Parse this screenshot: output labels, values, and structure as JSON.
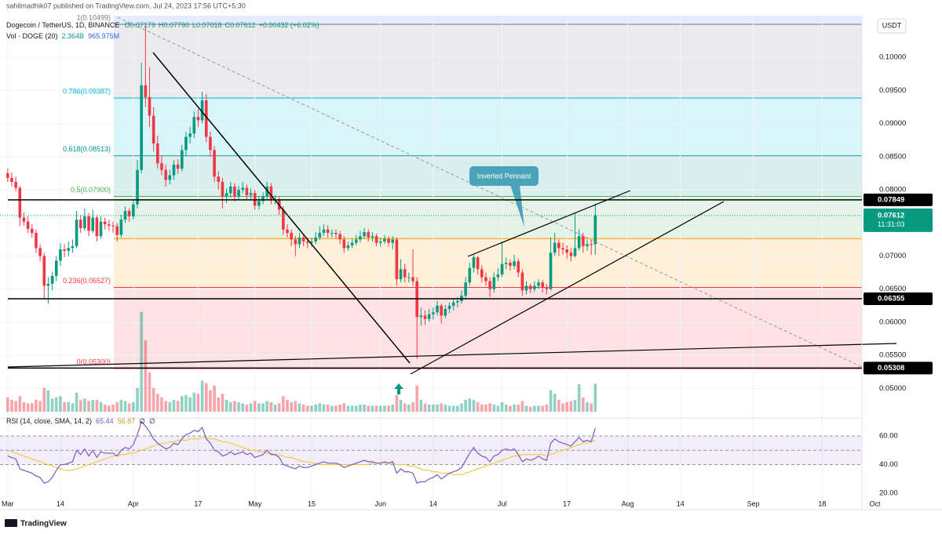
{
  "chart_data": {
    "type": "candlestick",
    "publisher": "sahilmadhik07 published on TradingView.com, Jul 24, 2023 17:56 UTC+5:30",
    "title": "Dogecoin / TetherUS, 1D, BINANCE",
    "ohlc_labels": [
      "O0.07179",
      "H0.07790",
      "L0.07018",
      "C0.07612",
      "+0.00432 (+6.02%)"
    ],
    "volume_title": "Vol · DOGE (20)",
    "volume_labels": [
      "2.364B",
      "965.975M"
    ],
    "rsi_title": "RSI (14, close, SMA, 14, 2)",
    "rsi_labels": [
      "65.44",
      "56.87",
      "∅",
      "∅"
    ],
    "currency": "USDT",
    "countdown": "11:31:03",
    "annotation": "Inverted Pennant",
    "brand": "TradingView",
    "up_color": "#089981",
    "down_color": "#f23645",
    "xlim": [
      -1.9,
      210.8
    ],
    "xticks": [
      {
        "value": 0,
        "label": "Mar"
      },
      {
        "value": 13,
        "label": "14"
      },
      {
        "value": 31,
        "label": "Apr"
      },
      {
        "value": 47,
        "label": "17"
      },
      {
        "value": 61,
        "label": "May"
      },
      {
        "value": 75,
        "label": "15"
      },
      {
        "value": 92,
        "label": "Jun"
      },
      {
        "value": 105,
        "label": "14"
      },
      {
        "value": 122,
        "label": "Jul"
      },
      {
        "value": 138,
        "label": "17"
      },
      {
        "value": 153,
        "label": "Aug"
      },
      {
        "value": 166,
        "label": "14"
      },
      {
        "value": 184,
        "label": "Sep"
      },
      {
        "value": 201,
        "label": "18"
      },
      {
        "value": 214,
        "label": "Oct"
      }
    ],
    "ylim": [
      0.0459,
      0.1063
    ],
    "yticks": [
      {
        "value": 0.05,
        "label": "0.05000"
      },
      {
        "value": 0.055,
        "label": "0.05500"
      },
      {
        "value": 0.06,
        "label": "0.06000"
      },
      {
        "value": 0.065,
        "label": "0.06500"
      },
      {
        "value": 0.07,
        "label": "0.07000"
      },
      {
        "value": 0.075,
        "label": "0.07500"
      },
      {
        "value": 0.08,
        "label": "0.08000"
      },
      {
        "value": 0.085,
        "label": "0.08500"
      },
      {
        "value": 0.09,
        "label": "0.09000"
      },
      {
        "value": 0.095,
        "label": "0.09500"
      },
      {
        "value": 0.1,
        "label": "0.10000"
      }
    ],
    "fib_levels": [
      {
        "value": 0.10499,
        "label": "1(0.10499)",
        "color": "#787b86"
      },
      {
        "value": 0.09387,
        "label": "0.786(0.09387)",
        "color": "#00bcd4"
      },
      {
        "value": 0.08513,
        "label": "0.618(0.08513)",
        "color": "#009688"
      },
      {
        "value": 0.079,
        "label": "0.5(0.07900)",
        "color": "#4caf50"
      },
      {
        "value": 0.07263,
        "color": "#ff9800"
      },
      {
        "value": 0.06527,
        "label": "0.236(0.06527)",
        "color": "#f23645"
      },
      {
        "value": 0.053,
        "label": "0(0.05300)"
      }
    ],
    "key_levels": [
      0.07849,
      0.06355,
      0.05308
    ],
    "candles": [
      [
        0.0825,
        0.0832,
        0.0812,
        0.0818
      ],
      [
        0.0818,
        0.0826,
        0.0805,
        0.0812
      ],
      [
        0.0812,
        0.082,
        0.0798,
        0.0803
      ],
      [
        0.0803,
        0.0806,
        0.0745,
        0.0758
      ],
      [
        0.0758,
        0.0766,
        0.0746,
        0.0752
      ],
      [
        0.0752,
        0.076,
        0.0735,
        0.0741
      ],
      [
        0.0741,
        0.0748,
        0.0728,
        0.0735
      ],
      [
        0.0735,
        0.074,
        0.0705,
        0.0712
      ],
      [
        0.0712,
        0.0718,
        0.0692,
        0.07
      ],
      [
        0.07,
        0.0705,
        0.0635,
        0.0655
      ],
      [
        0.0655,
        0.0668,
        0.0628,
        0.0658
      ],
      [
        0.0658,
        0.0676,
        0.0648,
        0.067
      ],
      [
        0.067,
        0.07,
        0.0662,
        0.0693
      ],
      [
        0.0693,
        0.072,
        0.0685,
        0.071
      ],
      [
        0.071,
        0.0718,
        0.0698,
        0.0708
      ],
      [
        0.0708,
        0.0722,
        0.07,
        0.0712
      ],
      [
        0.0712,
        0.0725,
        0.0705,
        0.0715
      ],
      [
        0.0715,
        0.0768,
        0.0712,
        0.0755
      ],
      [
        0.0755,
        0.0762,
        0.0735,
        0.0742
      ],
      [
        0.0742,
        0.0772,
        0.0738,
        0.076
      ],
      [
        0.076,
        0.0765,
        0.073,
        0.0738
      ],
      [
        0.0738,
        0.077,
        0.0735,
        0.0758
      ],
      [
        0.0758,
        0.0762,
        0.0722,
        0.073
      ],
      [
        0.073,
        0.076,
        0.0726,
        0.0752
      ],
      [
        0.0752,
        0.0758,
        0.074,
        0.0748
      ],
      [
        0.0748,
        0.0755,
        0.0738,
        0.0746
      ],
      [
        0.0746,
        0.0752,
        0.0735,
        0.0745
      ],
      [
        0.0745,
        0.075,
        0.0722,
        0.0732
      ],
      [
        0.0732,
        0.0762,
        0.0728,
        0.0755
      ],
      [
        0.0755,
        0.0775,
        0.075,
        0.0768
      ],
      [
        0.0768,
        0.0772,
        0.0752,
        0.076
      ],
      [
        0.076,
        0.0785,
        0.0755,
        0.0778
      ],
      [
        0.0778,
        0.0845,
        0.0772,
        0.083
      ],
      [
        0.083,
        0.0992,
        0.0825,
        0.0958
      ],
      [
        0.0958,
        0.1048,
        0.0925,
        0.094
      ],
      [
        0.094,
        0.0985,
        0.0895,
        0.0912
      ],
      [
        0.0912,
        0.0925,
        0.0858,
        0.087
      ],
      [
        0.087,
        0.0882,
        0.0832,
        0.084
      ],
      [
        0.084,
        0.0852,
        0.0822,
        0.083
      ],
      [
        0.083,
        0.0838,
        0.0805,
        0.0815
      ],
      [
        0.0815,
        0.083,
        0.0808,
        0.0822
      ],
      [
        0.0822,
        0.0845,
        0.0815,
        0.0838
      ],
      [
        0.0838,
        0.0846,
        0.0824,
        0.0832
      ],
      [
        0.0832,
        0.0868,
        0.0828,
        0.086
      ],
      [
        0.086,
        0.0888,
        0.0852,
        0.088
      ],
      [
        0.088,
        0.0895,
        0.087,
        0.0885
      ],
      [
        0.0885,
        0.0918,
        0.0878,
        0.091
      ],
      [
        0.091,
        0.0922,
        0.0895,
        0.0905
      ],
      [
        0.0905,
        0.0948,
        0.09,
        0.0935
      ],
      [
        0.0935,
        0.0945,
        0.0872,
        0.088
      ],
      [
        0.088,
        0.0888,
        0.085,
        0.086
      ],
      [
        0.086,
        0.0866,
        0.0812,
        0.082
      ],
      [
        0.082,
        0.0828,
        0.08,
        0.0812
      ],
      [
        0.0812,
        0.0818,
        0.0772,
        0.079
      ],
      [
        0.079,
        0.0802,
        0.078,
        0.0795
      ],
      [
        0.0795,
        0.0812,
        0.0788,
        0.0805
      ],
      [
        0.0805,
        0.081,
        0.0782,
        0.079
      ],
      [
        0.079,
        0.0806,
        0.0785,
        0.08
      ],
      [
        0.08,
        0.0812,
        0.0795,
        0.0803
      ],
      [
        0.0803,
        0.0808,
        0.0785,
        0.0792
      ],
      [
        0.0792,
        0.0802,
        0.0786,
        0.0795
      ],
      [
        0.0795,
        0.08,
        0.077,
        0.0776
      ],
      [
        0.0776,
        0.079,
        0.077,
        0.0783
      ],
      [
        0.0783,
        0.0796,
        0.0778,
        0.079
      ],
      [
        0.079,
        0.0812,
        0.0786,
        0.0805
      ],
      [
        0.0805,
        0.081,
        0.0778,
        0.0785
      ],
      [
        0.0785,
        0.0792,
        0.0778,
        0.0785
      ],
      [
        0.0785,
        0.079,
        0.0762,
        0.077
      ],
      [
        0.077,
        0.0775,
        0.0732,
        0.074
      ],
      [
        0.074,
        0.0748,
        0.0728,
        0.0735
      ],
      [
        0.0735,
        0.074,
        0.0715,
        0.0725
      ],
      [
        0.0725,
        0.073,
        0.07,
        0.0718
      ],
      [
        0.0718,
        0.0735,
        0.0712,
        0.0728
      ],
      [
        0.0728,
        0.0732,
        0.0715,
        0.0722
      ],
      [
        0.0722,
        0.0728,
        0.0712,
        0.072
      ],
      [
        0.072,
        0.0728,
        0.0714,
        0.0722
      ],
      [
        0.0722,
        0.0736,
        0.0718,
        0.0728
      ],
      [
        0.0728,
        0.0745,
        0.0724,
        0.0735
      ],
      [
        0.0735,
        0.0748,
        0.073,
        0.074
      ],
      [
        0.074,
        0.0746,
        0.0728,
        0.0735
      ],
      [
        0.0735,
        0.074,
        0.0728,
        0.0735
      ],
      [
        0.0735,
        0.074,
        0.0726,
        0.0733
      ],
      [
        0.0733,
        0.0738,
        0.0718,
        0.0725
      ],
      [
        0.0725,
        0.073,
        0.0705,
        0.0712
      ],
      [
        0.0712,
        0.0722,
        0.0708,
        0.0716
      ],
      [
        0.0716,
        0.0726,
        0.0712,
        0.072
      ],
      [
        0.072,
        0.0732,
        0.0716,
        0.0725
      ],
      [
        0.0725,
        0.0738,
        0.072,
        0.073
      ],
      [
        0.073,
        0.0742,
        0.0726,
        0.0736
      ],
      [
        0.0736,
        0.074,
        0.0722,
        0.0728
      ],
      [
        0.0728,
        0.0736,
        0.0722,
        0.073
      ],
      [
        0.073,
        0.0734,
        0.0715,
        0.072
      ],
      [
        0.072,
        0.0728,
        0.0714,
        0.0722
      ],
      [
        0.0722,
        0.0732,
        0.0718,
        0.0726
      ],
      [
        0.0726,
        0.073,
        0.0714,
        0.072
      ],
      [
        0.072,
        0.073,
        0.071,
        0.0725
      ],
      [
        0.0725,
        0.0728,
        0.0655,
        0.0665
      ],
      [
        0.0665,
        0.0695,
        0.066,
        0.068
      ],
      [
        0.068,
        0.0688,
        0.066,
        0.0668
      ],
      [
        0.0668,
        0.0675,
        0.066,
        0.0668
      ],
      [
        0.0668,
        0.071,
        0.0655,
        0.0662
      ],
      [
        0.0662,
        0.0668,
        0.0545,
        0.0608
      ],
      [
        0.0608,
        0.0622,
        0.0595,
        0.061
      ],
      [
        0.061,
        0.0618,
        0.0596,
        0.0605
      ],
      [
        0.0605,
        0.062,
        0.06,
        0.0612
      ],
      [
        0.0612,
        0.0622,
        0.0604,
        0.0615
      ],
      [
        0.0615,
        0.0632,
        0.061,
        0.0625
      ],
      [
        0.0625,
        0.0628,
        0.0598,
        0.061
      ],
      [
        0.061,
        0.0626,
        0.0606,
        0.062
      ],
      [
        0.062,
        0.063,
        0.0614,
        0.0625
      ],
      [
        0.0625,
        0.0636,
        0.0618,
        0.063
      ],
      [
        0.063,
        0.0638,
        0.0622,
        0.0632
      ],
      [
        0.0632,
        0.0648,
        0.0628,
        0.064
      ],
      [
        0.064,
        0.0668,
        0.0636,
        0.066
      ],
      [
        0.066,
        0.069,
        0.0655,
        0.0682
      ],
      [
        0.0682,
        0.0702,
        0.0675,
        0.0698
      ],
      [
        0.0698,
        0.07,
        0.0672,
        0.068
      ],
      [
        0.068,
        0.0686,
        0.066,
        0.0668
      ],
      [
        0.0668,
        0.0675,
        0.0655,
        0.0662
      ],
      [
        0.0662,
        0.0668,
        0.0638,
        0.065
      ],
      [
        0.065,
        0.0675,
        0.0645,
        0.0668
      ],
      [
        0.0668,
        0.0682,
        0.0662,
        0.0672
      ],
      [
        0.0672,
        0.0722,
        0.0668,
        0.0688
      ],
      [
        0.0688,
        0.0698,
        0.068,
        0.069
      ],
      [
        0.069,
        0.0695,
        0.0678,
        0.0685
      ],
      [
        0.0685,
        0.0702,
        0.068,
        0.0692
      ],
      [
        0.0692,
        0.0696,
        0.0668,
        0.0675
      ],
      [
        0.0675,
        0.068,
        0.064,
        0.0648
      ],
      [
        0.0648,
        0.0662,
        0.0642,
        0.0655
      ],
      [
        0.0655,
        0.0658,
        0.0644,
        0.065
      ],
      [
        0.065,
        0.0662,
        0.0646,
        0.0655
      ],
      [
        0.0655,
        0.0665,
        0.065,
        0.066
      ],
      [
        0.066,
        0.0664,
        0.0645,
        0.0652
      ],
      [
        0.0652,
        0.0658,
        0.0642,
        0.065
      ],
      [
        0.065,
        0.0728,
        0.0648,
        0.0705
      ],
      [
        0.0705,
        0.0735,
        0.07,
        0.072
      ],
      [
        0.072,
        0.0725,
        0.07,
        0.0712
      ],
      [
        0.0712,
        0.072,
        0.0702,
        0.071
      ],
      [
        0.071,
        0.0716,
        0.0696,
        0.0705
      ],
      [
        0.0705,
        0.0712,
        0.0692,
        0.07
      ],
      [
        0.07,
        0.0765,
        0.0698,
        0.0712
      ],
      [
        0.0712,
        0.074,
        0.0708,
        0.073
      ],
      [
        0.073,
        0.0735,
        0.0705,
        0.0715
      ],
      [
        0.0715,
        0.0725,
        0.0708,
        0.0718
      ],
      [
        0.0718,
        0.0724,
        0.0702,
        0.07179
      ],
      [
        0.07179,
        0.0779,
        0.07018,
        0.07612
      ]
    ],
    "volume_ylim": [
      0,
      9.9
    ],
    "volume": [
      1.2,
      1.0,
      0.9,
      1.3,
      0.8,
      0.7,
      0.7,
      1.0,
      0.9,
      2.0,
      1.8,
      1.1,
      1.2,
      1.3,
      0.8,
      0.8,
      0.7,
      1.6,
      1.0,
      1.1,
      0.9,
      1.0,
      1.0,
      0.8,
      0.6,
      0.5,
      0.6,
      0.8,
      1.0,
      0.9,
      0.7,
      0.8,
      2.0,
      8.4,
      6.0,
      3.3,
      2.0,
      1.5,
      1.2,
      0.9,
      0.8,
      1.0,
      0.9,
      1.3,
      1.4,
      1.2,
      1.6,
      1.5,
      2.6,
      2.4,
      1.8,
      2.2,
      1.2,
      1.5,
      1.0,
      0.8,
      0.9,
      0.8,
      0.7,
      0.6,
      0.7,
      0.9,
      0.7,
      0.7,
      0.9,
      0.8,
      0.6,
      0.7,
      1.3,
      1.0,
      0.8,
      0.9,
      0.7,
      0.6,
      0.5,
      0.5,
      0.6,
      0.7,
      0.6,
      0.6,
      0.5,
      0.5,
      0.6,
      0.7,
      0.5,
      0.5,
      0.5,
      0.6,
      0.6,
      0.5,
      0.5,
      0.5,
      0.5,
      0.5,
      0.5,
      0.6,
      1.4,
      1.0,
      0.7,
      0.6,
      0.8,
      2.2,
      1.0,
      0.7,
      0.6,
      0.6,
      0.6,
      0.7,
      0.6,
      0.5,
      0.5,
      0.5,
      0.7,
      1.0,
      1.1,
      1.0,
      0.8,
      0.6,
      0.6,
      0.7,
      0.6,
      0.5,
      0.8,
      0.6,
      0.5,
      0.6,
      0.6,
      0.9,
      0.5,
      0.4,
      0.5,
      0.5,
      0.5,
      0.6,
      1.8,
      1.5,
      1.0,
      0.7,
      0.8,
      0.9,
      1.0,
      2.3,
      1.2,
      0.8,
      0.7,
      2.364
    ],
    "rsi_ylim": [
      11.2,
      68.8
    ],
    "rsi_yticks": [
      {
        "value": 60,
        "label": "60.00"
      },
      {
        "value": 40,
        "label": "40.00"
      },
      {
        "value": 20,
        "label": "20.00"
      }
    ],
    "rsi_bands": [
      60,
      50,
      40
    ],
    "rsi_color": "#7e57c2",
    "rsi_ma_color": "#f2c230",
    "rsi": [
      46,
      45,
      44,
      37,
      36,
      35,
      34,
      32,
      31,
      27,
      28,
      31,
      36,
      40,
      40,
      41,
      42,
      50,
      47,
      51,
      46,
      50,
      45,
      49,
      48,
      48,
      48,
      46,
      50,
      52,
      51,
      54,
      61,
      70,
      67,
      63,
      58,
      55,
      53,
      51,
      52,
      55,
      54,
      58,
      61,
      62,
      64,
      63,
      66,
      58,
      55,
      50,
      49,
      46,
      47,
      49,
      47,
      48,
      49,
      47,
      48,
      45,
      46,
      47,
      50,
      47,
      47,
      45,
      40,
      39,
      38,
      37,
      39,
      38,
      38,
      39,
      40,
      41,
      42,
      41,
      41,
      41,
      40,
      38,
      39,
      40,
      41,
      42,
      43,
      42,
      42,
      41,
      41,
      42,
      41,
      42,
      34,
      37,
      35,
      35,
      34,
      27,
      28,
      28,
      30,
      31,
      33,
      30,
      32,
      34,
      35,
      36,
      38,
      43,
      48,
      52,
      48,
      46,
      45,
      42,
      46,
      47,
      50,
      51,
      50,
      51,
      47,
      42,
      44,
      43,
      44,
      46,
      44,
      43,
      55,
      58,
      56,
      55,
      54,
      53,
      56,
      59,
      56,
      57,
      56,
      65.44
    ],
    "rsi_ma": [
      50,
      49,
      48,
      47,
      46,
      45,
      44,
      43,
      42,
      41,
      40,
      39,
      38,
      37,
      36,
      36,
      36,
      37,
      38,
      39,
      40,
      41,
      42,
      43,
      44,
      45,
      46,
      46,
      47,
      47,
      48,
      48,
      49,
      50,
      51,
      52,
      53,
      54,
      55,
      55,
      56,
      56,
      57,
      57,
      57,
      58,
      58,
      58,
      59,
      59,
      58,
      58,
      57,
      56,
      56,
      55,
      54,
      53,
      52,
      51,
      50,
      50,
      49,
      49,
      48,
      48,
      47,
      47,
      46,
      45,
      45,
      44,
      43,
      42,
      42,
      41,
      41,
      40,
      40,
      40,
      40,
      40,
      40,
      40,
      40,
      40,
      40,
      40,
      40,
      40,
      41,
      41,
      41,
      41,
      41,
      41,
      40,
      40,
      40,
      39,
      39,
      38,
      37,
      36,
      36,
      35,
      35,
      34,
      34,
      34,
      33,
      33,
      33,
      34,
      35,
      36,
      37,
      38,
      39,
      40,
      41,
      42,
      43,
      44,
      45,
      46,
      46,
      47,
      47,
      47,
      47,
      47,
      47,
      46,
      47,
      48,
      49,
      50,
      51,
      52,
      53,
      54,
      55,
      55,
      56,
      56.87
    ]
  }
}
